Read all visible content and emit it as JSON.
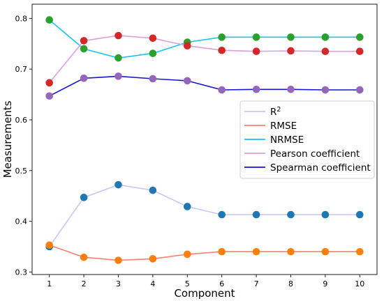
{
  "chart_data": {
    "type": "line",
    "xlabel": "Component",
    "ylabel": "Measurements",
    "x": [
      1,
      2,
      3,
      4,
      5,
      6,
      7,
      8,
      9,
      10
    ],
    "xlim": [
      0.5,
      10.5
    ],
    "ylim": [
      0.295,
      0.828
    ],
    "yticks": [
      0.3,
      0.4,
      0.5,
      0.6,
      0.7,
      0.8
    ],
    "yticks_labels": [
      "0.3",
      "0.4",
      "0.5",
      "0.6",
      "0.7",
      "0.8"
    ],
    "xticks_labels": [
      "1",
      "2",
      "3",
      "4",
      "5",
      "6",
      "7",
      "8",
      "9",
      "10"
    ],
    "grid": false,
    "legend_position": "center-right",
    "series": [
      {
        "name": "R",
        "name_sup": "2",
        "line_color": "#c8c8f5",
        "marker_color": "#1f77b4",
        "values": [
          0.35,
          0.447,
          0.472,
          0.461,
          0.429,
          0.413,
          0.413,
          0.413,
          0.413,
          0.413
        ]
      },
      {
        "name": "RMSE",
        "line_color": "#fa8072",
        "marker_color": "#ff7f0e",
        "values": [
          0.353,
          0.329,
          0.323,
          0.326,
          0.335,
          0.34,
          0.34,
          0.34,
          0.34,
          0.34
        ]
      },
      {
        "name": "NRMSE",
        "line_color": "#17c5f0",
        "marker_color": "#2ca02c",
        "values": [
          0.797,
          0.74,
          0.722,
          0.731,
          0.753,
          0.763,
          0.763,
          0.763,
          0.763,
          0.763
        ]
      },
      {
        "name": "Pearson coefficient",
        "line_color": "#dda0dd",
        "marker_color": "#d62728",
        "values": [
          0.673,
          0.756,
          0.766,
          0.761,
          0.746,
          0.737,
          0.735,
          0.736,
          0.735,
          0.735
        ]
      },
      {
        "name": "Spearman coefficient",
        "line_color": "#1515d8",
        "marker_color": "#9467bd",
        "values": [
          0.647,
          0.682,
          0.686,
          0.681,
          0.677,
          0.659,
          0.66,
          0.66,
          0.659,
          0.659
        ]
      }
    ]
  }
}
